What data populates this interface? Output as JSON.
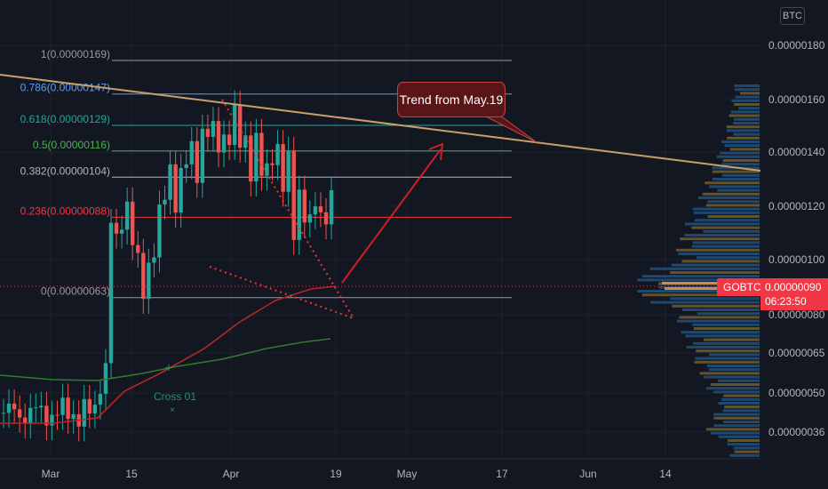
{
  "chart_data": {
    "type": "candlestick",
    "symbol": "GOBTC",
    "currency": "BTC",
    "last_price": "0.00000090",
    "countdown": "06:23:50",
    "y_axis": {
      "ticks": [
        "0.00000180",
        "0.00000160",
        "0.00000140",
        "0.00000120",
        "0.00000100",
        "0.00000080",
        "0.00000065",
        "0.00000050",
        "0.00000036"
      ],
      "scale": "log"
    },
    "x_axis": {
      "ticks": [
        "Mar",
        "15",
        "Apr",
        "19",
        "May",
        "17",
        "Jun",
        "14"
      ]
    },
    "fib_levels": [
      {
        "label": "1(0.00000169)",
        "value": 1.69e-06,
        "color": "#9598a1"
      },
      {
        "label": "0.786(0.00000147)",
        "value": 1.47e-06,
        "color": "#5b9cf6"
      },
      {
        "label": "0.618(0.00000129)",
        "value": 1.29e-06,
        "color": "#26a69a"
      },
      {
        "label": "0.5(0.00000116)",
        "value": 1.16e-06,
        "color": "#4caf50"
      },
      {
        "label": "0.382(0.00000104)",
        "value": 1.04e-06,
        "color": "#b2b5be"
      },
      {
        "label": "0.236(0.00000088)",
        "value": 8.8e-07,
        "color": "#f23645"
      },
      {
        "label": "0(0.00000063)",
        "value": 6.3e-07,
        "color": "#9598a1"
      }
    ],
    "annotations": {
      "callout": "Trend from May.19",
      "cross": "Cross 01",
      "cross_mark": "×"
    },
    "colors": {
      "up": "#26a69a",
      "down": "#ef5350",
      "trend_line": "#c8a06a",
      "ma_fast": "#b3262d",
      "ma_slow": "#2e7d32",
      "background": "#131722"
    }
  }
}
